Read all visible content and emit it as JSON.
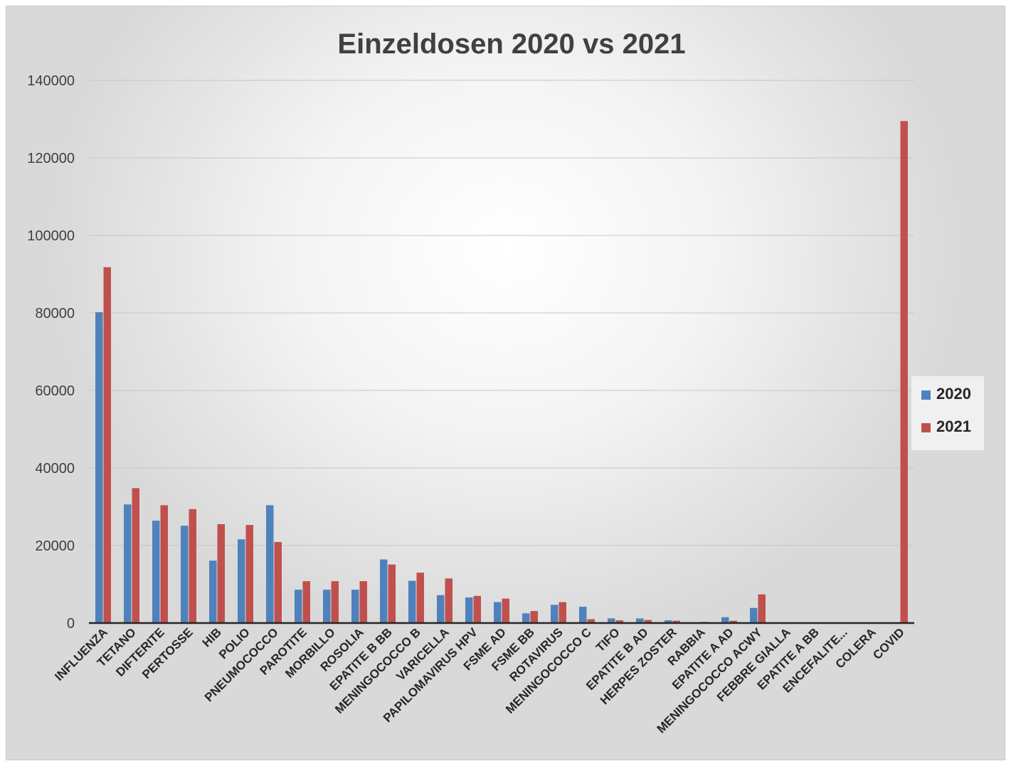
{
  "chart_data": {
    "type": "bar",
    "title": "Einzeldosen 2020 vs 2021",
    "xlabel": "",
    "ylabel": "",
    "ylim": [
      0,
      140000
    ],
    "yticks": [
      0,
      20000,
      40000,
      60000,
      80000,
      100000,
      120000,
      140000
    ],
    "grid": true,
    "legend_position": "right",
    "categories": [
      "INFLUENZA",
      "TETANO",
      "DIFTERITE",
      "PERTOSSE",
      "HIB",
      "POLIO",
      "PNEUMOCOCCO",
      "PAROTITE",
      "MORBILLO",
      "ROSOLIA",
      "EPATITE B BB",
      "MENINGOCOCCO B",
      "VARICELLA",
      "PAPILOMAVIRUS HPV",
      "FSME AD",
      "FSME BB",
      "ROTAVIRUS",
      "MENINGOCOCCO C",
      "TIFO",
      "EPATITE B AD",
      "HERPES ZOSTER",
      "RABBIA",
      "EPATITE A AD",
      "MENINGOCOCCO ACWY",
      "FEBBRE GIALLA",
      "EPATITE A BB",
      "ENCEFALITE...",
      "COLERA",
      "COVID"
    ],
    "series": [
      {
        "name": "2020",
        "color": "#4f81bd",
        "values": [
          80200,
          30600,
          26400,
          25100,
          16100,
          21600,
          30400,
          8600,
          8600,
          8600,
          16400,
          10900,
          7200,
          6600,
          5400,
          2500,
          4700,
          4200,
          1200,
          1200,
          700,
          200,
          1500,
          3900,
          100,
          100,
          100,
          50,
          0
        ]
      },
      {
        "name": "2021",
        "color": "#c0504d",
        "values": [
          91800,
          34800,
          30400,
          29400,
          25500,
          25300,
          20900,
          10800,
          10800,
          10800,
          15100,
          13000,
          11500,
          7000,
          6300,
          3100,
          5400,
          1000,
          700,
          800,
          600,
          300,
          600,
          7400,
          100,
          100,
          100,
          50,
          129500
        ]
      }
    ]
  }
}
